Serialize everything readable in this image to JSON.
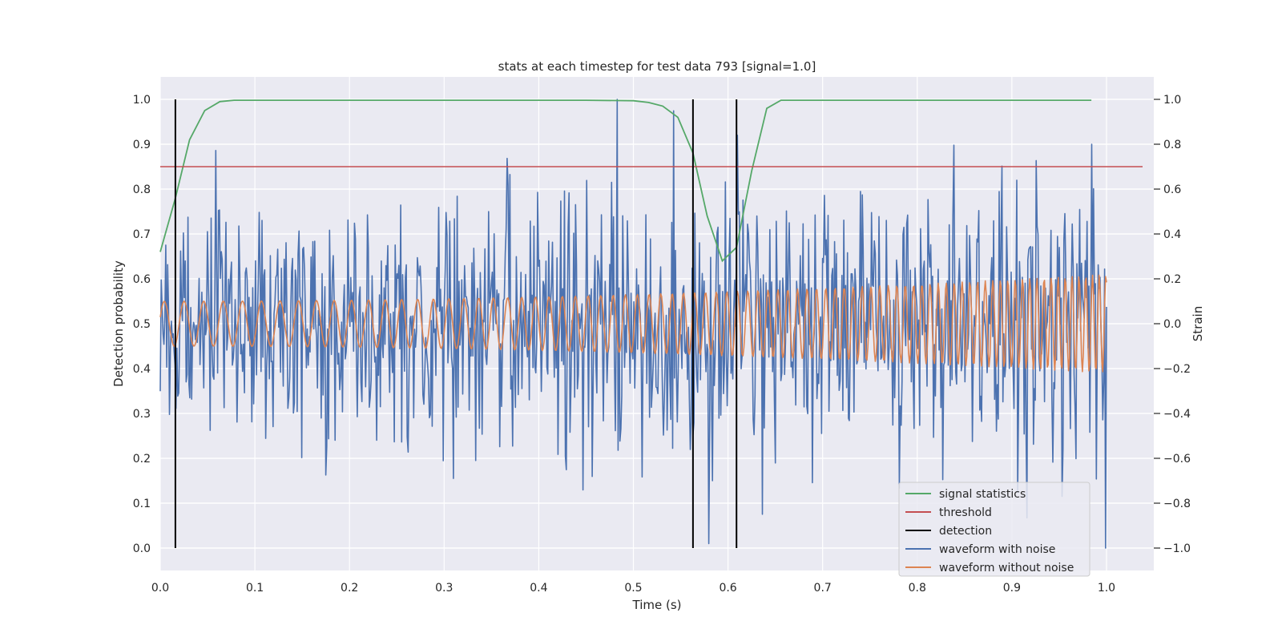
{
  "chart_data": {
    "type": "line",
    "title": "stats at each timestep for test data 793 [signal=1.0]",
    "xlabel": "Time (s)",
    "ylabel": "Detection probability",
    "y2label": "Strain",
    "xlim": [
      0.0,
      1.05
    ],
    "ylim": [
      -0.05,
      1.05
    ],
    "y2lim": [
      -1.1,
      1.1
    ],
    "xticks": [
      "0.0",
      "0.1",
      "0.2",
      "0.3",
      "0.4",
      "0.5",
      "0.6",
      "0.7",
      "0.8",
      "0.9",
      "1.0"
    ],
    "yticks": [
      "0.0",
      "0.1",
      "0.2",
      "0.3",
      "0.4",
      "0.5",
      "0.6",
      "0.7",
      "0.8",
      "0.9",
      "1.0"
    ],
    "y2ticks": [
      "−1.0",
      "−0.8",
      "−0.6",
      "−0.4",
      "−0.2",
      "0.0",
      "0.2",
      "0.4",
      "0.6",
      "0.8",
      "1.0"
    ],
    "grid": true,
    "legend_position": "bottom-right",
    "colors": {
      "signal": "#55a868",
      "threshold": "#c44e52",
      "detection": "#000000",
      "noisy": "#4c72b0",
      "clean": "#dd8452",
      "background": "#eaeaf2",
      "grid": "#ffffff"
    },
    "legend": [
      "signal statistics",
      "threshold",
      "detection",
      "waveform with noise",
      "waveform without noise"
    ],
    "signal_statistics": {
      "x": [
        0.0,
        0.016,
        0.031,
        0.047,
        0.063,
        0.078,
        0.094,
        0.11,
        0.2,
        0.3,
        0.4,
        0.45,
        0.5,
        0.516,
        0.531,
        0.547,
        0.563,
        0.578,
        0.594,
        0.609,
        0.625,
        0.641,
        0.656,
        0.672,
        0.688,
        0.8,
        0.9,
        0.984
      ],
      "y": [
        0.66,
        0.78,
        0.91,
        0.975,
        0.995,
        0.998,
        0.998,
        0.998,
        0.998,
        0.998,
        0.998,
        0.998,
        0.997,
        0.993,
        0.985,
        0.96,
        0.88,
        0.74,
        0.64,
        0.67,
        0.84,
        0.98,
        0.998,
        0.998,
        0.998,
        0.998,
        0.998,
        0.998
      ]
    },
    "threshold": 0.85,
    "detections": [
      0.016,
      0.563,
      0.609
    ],
    "waveform_with_noise": {
      "description_note": "",
      "x_range": [
        0.0,
        1.0
      ],
      "n_points": 1024,
      "strain_range": [
        -1.0,
        1.0
      ],
      "notable_peaks": [
        {
          "x": 0.483,
          "strain": 1.0
        },
        {
          "x": 0.61,
          "strain": 0.84
        },
        {
          "x": 0.984,
          "strain": 0.8
        },
        {
          "x": 0.999,
          "strain": -1.0
        }
      ]
    },
    "waveform_without_noise": {
      "x_range": [
        0.0,
        1.0
      ],
      "start_amplitude": 0.1,
      "end_amplitude": 0.22,
      "start_period_s": 0.021,
      "end_period_s": 0.007
    }
  }
}
